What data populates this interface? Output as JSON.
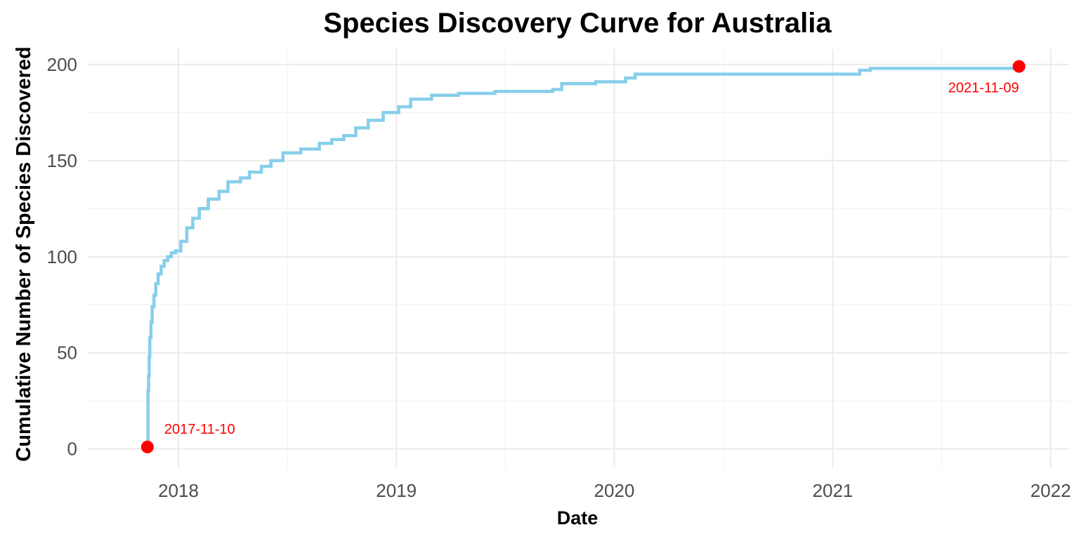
{
  "chart_data": {
    "type": "line",
    "step": true,
    "title": "Species Discovery Curve for Australia",
    "xlabel": "Date",
    "ylabel": "Cumulative Number of Species Discovered",
    "xlim": [
      "2017-08-01",
      "2022-02-01"
    ],
    "ylim": [
      -10,
      208
    ],
    "x_ticks": [
      "2018",
      "2019",
      "2020",
      "2021",
      "2022"
    ],
    "y_ticks": [
      0,
      50,
      100,
      150,
      200
    ],
    "grid": true,
    "legend": "none",
    "line_color": "#87CEEB",
    "marker_color": "#FF0000",
    "series": [
      {
        "x": [
          "2017-11-10",
          "2017-11-11",
          "2017-11-12",
          "2017-11-13",
          "2017-11-14",
          "2017-11-16",
          "2017-11-18",
          "2017-11-21",
          "2017-11-24",
          "2017-11-28",
          "2017-12-03",
          "2017-12-08",
          "2017-12-14",
          "2017-12-20",
          "2017-12-27",
          "2018-01-05",
          "2018-01-15",
          "2018-01-25",
          "2018-02-05",
          "2018-02-20",
          "2018-03-10",
          "2018-03-25",
          "2018-04-15",
          "2018-04-30",
          "2018-05-20",
          "2018-06-05",
          "2018-06-25",
          "2018-07-25",
          "2018-08-25",
          "2018-09-15",
          "2018-10-05",
          "2018-10-25",
          "2018-11-15",
          "2018-12-10",
          "2019-01-05",
          "2019-01-25",
          "2019-03-01",
          "2019-04-15",
          "2019-06-15",
          "2019-09-20",
          "2019-10-05",
          "2019-12-01",
          "2020-01-20",
          "2020-02-05",
          "2020-06-01",
          "2020-12-01",
          "2021-02-15",
          "2021-03-05",
          "2021-07-15",
          "2021-11-09"
        ],
        "y": [
          1,
          30,
          38,
          48,
          58,
          66,
          74,
          80,
          86,
          91,
          95,
          98,
          100,
          102,
          103,
          108,
          115,
          120,
          125,
          130,
          134,
          139,
          141,
          144,
          147,
          150,
          154,
          156,
          159,
          161,
          163,
          167,
          171,
          175,
          178,
          182,
          184,
          185,
          186,
          187,
          190,
          191,
          193,
          195,
          195,
          195,
          197,
          198,
          198,
          199
        ]
      }
    ],
    "annotations": [
      {
        "x": "2017-11-10",
        "y": 1,
        "label": "2017-11-10"
      },
      {
        "x": "2021-11-09",
        "y": 199,
        "label": "2021-11-09"
      }
    ]
  }
}
